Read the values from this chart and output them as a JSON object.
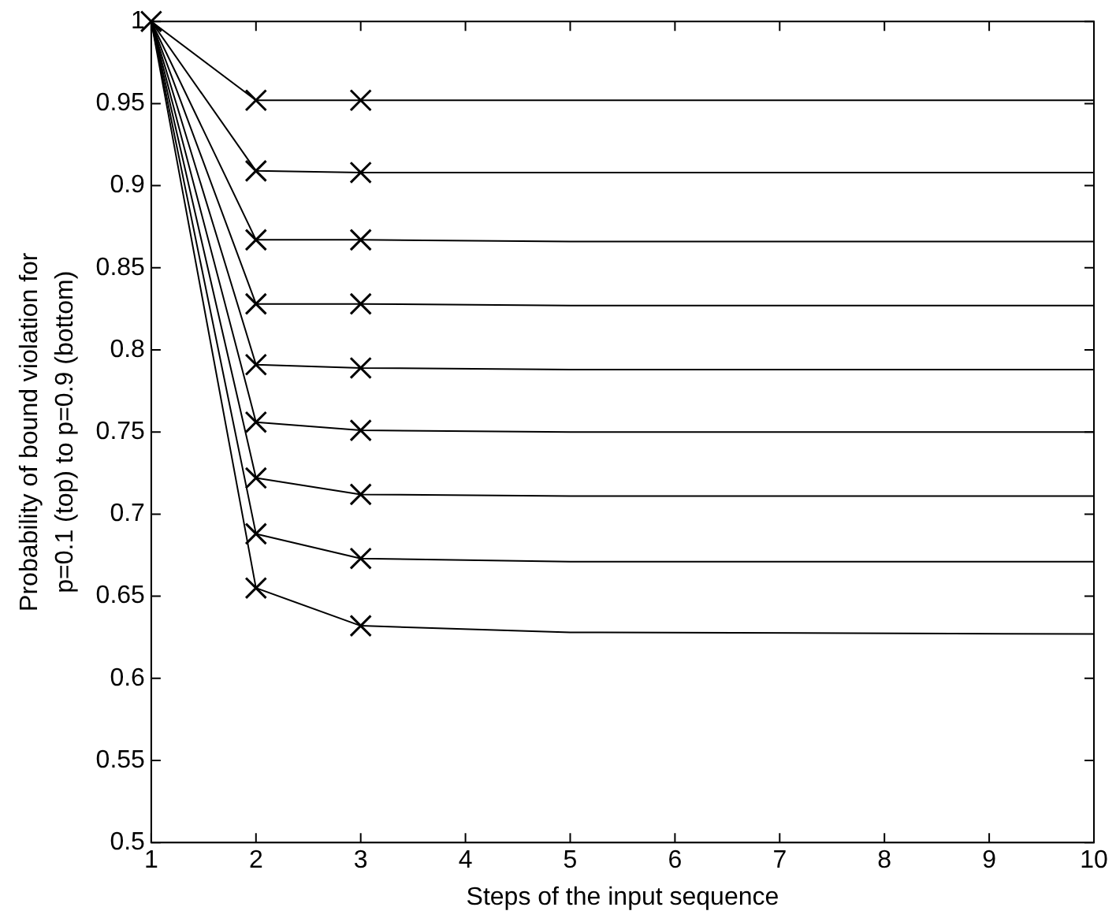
{
  "chart_data": {
    "type": "line",
    "xlabel": "Steps of the input sequence",
    "ylabel": "Probability of bound violation for\np=0.1 (top) to p=0.9 (bottom)",
    "xlim": [
      1,
      10
    ],
    "xticks": [
      1,
      2,
      3,
      4,
      5,
      6,
      7,
      8,
      9,
      10
    ],
    "ylim": [
      0.5,
      1
    ],
    "yticks": [
      0.5,
      0.55,
      0.6,
      0.65,
      0.7,
      0.75,
      0.8,
      0.85,
      0.9,
      0.95,
      1
    ],
    "grid": false,
    "legend": false,
    "marker": "none",
    "line_style": "solid",
    "series": [
      {
        "color": "#000000",
        "x": [
          1,
          2,
          3,
          5,
          10
        ],
        "values": [
          1,
          0.952,
          0.952,
          0.952,
          0.952
        ]
      },
      {
        "color": "#000000",
        "x": [
          1,
          2,
          3,
          5,
          10
        ],
        "values": [
          1,
          0.909,
          0.908,
          0.908,
          0.908
        ]
      },
      {
        "color": "#000000",
        "x": [
          1,
          2,
          3,
          5,
          10
        ],
        "values": [
          1,
          0.867,
          0.867,
          0.866,
          0.866
        ]
      },
      {
        "color": "#000000",
        "x": [
          1,
          2,
          3,
          5,
          10
        ],
        "values": [
          1,
          0.828,
          0.828,
          0.827,
          0.827
        ]
      },
      {
        "color": "#000000",
        "x": [
          1,
          2,
          3,
          5,
          10
        ],
        "values": [
          1,
          0.791,
          0.789,
          0.788,
          0.788
        ]
      },
      {
        "color": "#000000",
        "x": [
          1,
          2,
          3,
          5,
          10
        ],
        "values": [
          1,
          0.756,
          0.751,
          0.75,
          0.75
        ]
      },
      {
        "color": "#000000",
        "x": [
          1,
          2,
          3,
          5,
          10
        ],
        "values": [
          1,
          0.722,
          0.712,
          0.711,
          0.711
        ]
      },
      {
        "color": "#000000",
        "x": [
          1,
          2,
          3,
          5,
          10
        ],
        "values": [
          1,
          0.688,
          0.673,
          0.671,
          0.671
        ]
      },
      {
        "color": "#000000",
        "x": [
          1,
          2,
          3,
          5,
          10
        ],
        "values": [
          1,
          0.655,
          0.632,
          0.628,
          0.627
        ]
      },
      {
        "type": "scatter",
        "marker": "cross",
        "color": "#000000",
        "x": [
          1,
          2,
          3,
          2,
          3,
          2,
          3,
          2,
          3,
          2,
          3,
          2,
          3,
          2,
          3,
          2,
          3,
          2,
          3
        ],
        "values": [
          1,
          0.952,
          0.952,
          0.909,
          0.908,
          0.867,
          0.867,
          0.828,
          0.828,
          0.791,
          0.789,
          0.756,
          0.751,
          0.722,
          0.712,
          0.688,
          0.673,
          0.655,
          0.632
        ]
      }
    ]
  }
}
